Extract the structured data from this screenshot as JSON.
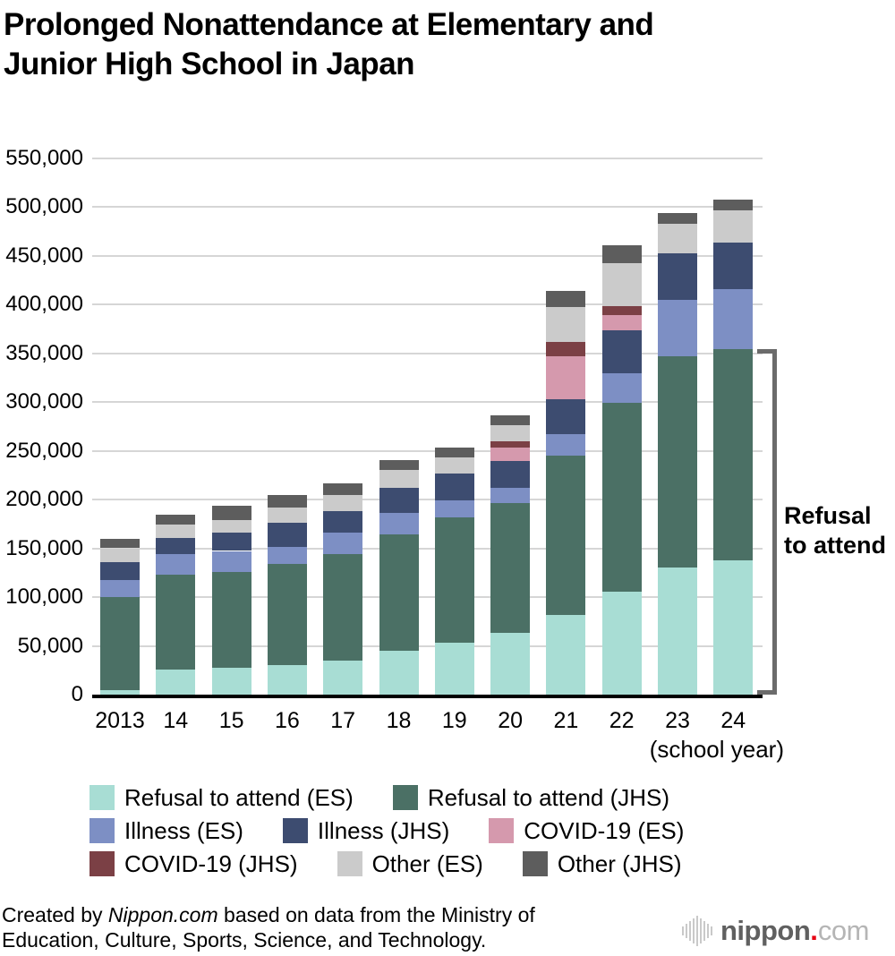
{
  "title": {
    "lines": [
      "Prolonged Nonattendance at Elementary and",
      "Junior High School in Japan"
    ]
  },
  "chart_data": {
    "type": "bar",
    "stacked": true,
    "title": "Prolonged Nonattendance at Elementary and Junior High School in Japan",
    "categories": [
      "2013",
      "14",
      "15",
      "16",
      "17",
      "18",
      "19",
      "20",
      "21",
      "22",
      "23",
      "24"
    ],
    "x_axis_note": "(school year)",
    "ylim": [
      0,
      550000
    ],
    "grid": true,
    "ytick_values": [
      0,
      50000,
      100000,
      150000,
      200000,
      250000,
      300000,
      350000,
      400000,
      450000,
      500000,
      550000
    ],
    "ytick_labels": [
      "0",
      "50,000",
      "100,000",
      "150,000",
      "200,000",
      "250,000",
      "300,000",
      "350,000",
      "400,000",
      "450,000",
      "500,000",
      "550,000"
    ],
    "series": [
      {
        "name": "Refusal to attend (ES)",
        "color": "#a8ddd4",
        "values": [
          4500,
          25864,
          27583,
          30448,
          35032,
          44841,
          53350,
          63350,
          81498,
          105112,
          130370,
          137704
        ]
      },
      {
        "name": "Refusal to attend (JHS)",
        "color": "#4b7065",
        "values": [
          95800,
          97033,
          98408,
          103235,
          108999,
          119687,
          127922,
          132777,
          163442,
          193936,
          216112,
          216266
        ]
      },
      {
        "name": "Illness (ES)",
        "color": "#7d8fc4",
        "values": [
          17500,
          20800,
          21300,
          17700,
          22300,
          22000,
          18000,
          16000,
          22300,
          30600,
          58200,
          61300
        ]
      },
      {
        "name": "Illness (JHS)",
        "color": "#3d4c70",
        "values": [
          18400,
          16800,
          19200,
          24500,
          22100,
          25100,
          27600,
          27000,
          35800,
          43900,
          47500,
          48300
        ]
      },
      {
        "name": "COVID-19 (ES)",
        "color": "#d599ad",
        "values": [
          0,
          0,
          0,
          0,
          0,
          0,
          0,
          14238,
          44000,
          15300,
          0,
          0
        ]
      },
      {
        "name": "COVID-19 (JHS)",
        "color": "#7b4045",
        "values": [
          0,
          0,
          0,
          0,
          0,
          0,
          0,
          6667,
          14500,
          9200,
          0,
          0
        ]
      },
      {
        "name": "Other (ES)",
        "color": "#cbcbcb",
        "values": [
          13800,
          13700,
          12800,
          15900,
          16300,
          18400,
          16000,
          16500,
          35300,
          44000,
          30000,
          32800
        ]
      },
      {
        "name": "Other (JHS)",
        "color": "#5d5d5d",
        "values": [
          9800,
          10700,
          14700,
          13100,
          12200,
          10700,
          10700,
          10000,
          16800,
          18400,
          11400,
          11300
        ]
      }
    ],
    "legend_rows": [
      [
        0,
        1
      ],
      [
        2,
        3,
        4
      ],
      [
        5,
        6,
        7
      ]
    ],
    "legend_position": "bottom",
    "annotation": {
      "text": "Refusal to attend",
      "lines": [
        "Refusal",
        "to attend"
      ]
    }
  },
  "footer": {
    "prefix": "Created by ",
    "brand": "Nippon.com",
    "suffix": " based on data from the Ministry of",
    "line2": "Education, Culture, Sports, Science, and Technology."
  },
  "logo": {
    "brand": "nippon",
    "dot": ".",
    "tld": "com"
  }
}
